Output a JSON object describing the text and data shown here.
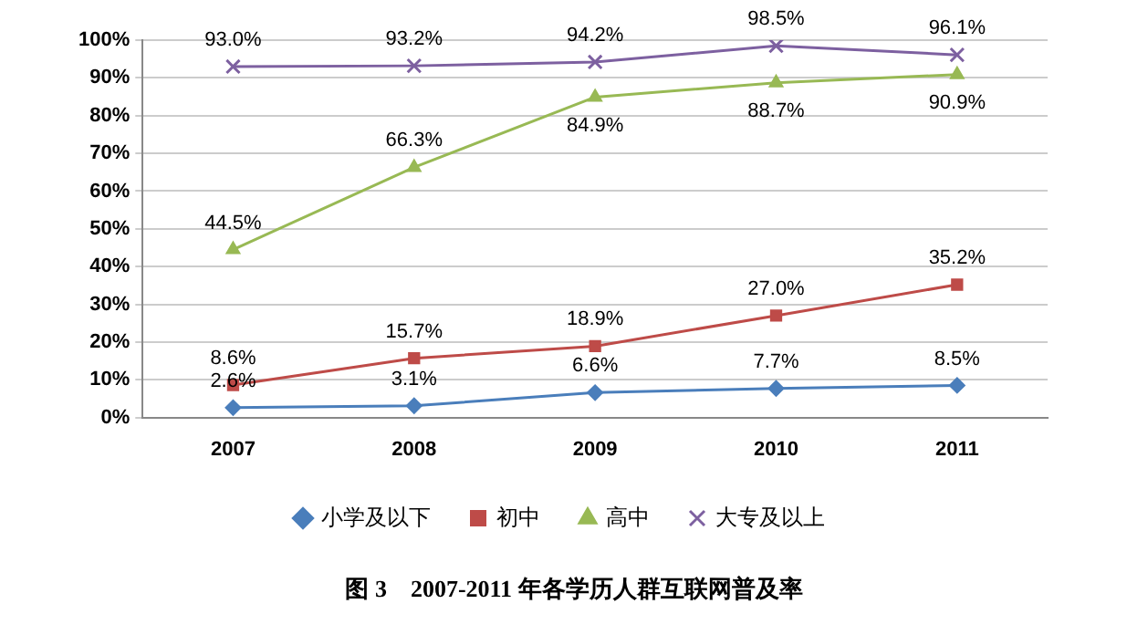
{
  "chart_data": {
    "type": "line",
    "title": "图 3　2007-2011 年各学历人群互联网普及率",
    "categories": [
      "2007",
      "2008",
      "2009",
      "2010",
      "2011"
    ],
    "series": [
      {
        "name": "小学及以下",
        "color": "#4a7ebb",
        "marker": "diamond",
        "values": [
          2.6,
          3.1,
          6.6,
          7.7,
          8.5
        ],
        "value_labels": [
          "2.6%",
          "3.1%",
          "6.6%",
          "7.7%",
          "8.5%"
        ]
      },
      {
        "name": "初中",
        "color": "#be4b48",
        "marker": "square",
        "values": [
          8.6,
          15.7,
          18.9,
          27.0,
          35.2
        ],
        "value_labels": [
          "8.6%",
          "15.7%",
          "18.9%",
          "27.0%",
          "35.2%"
        ]
      },
      {
        "name": "高中",
        "color": "#98b954",
        "marker": "triangle",
        "values": [
          44.5,
          66.3,
          84.9,
          88.7,
          90.9
        ],
        "value_labels": [
          "44.5%",
          "66.3%",
          "84.9%",
          "88.7%",
          "90.9%"
        ]
      },
      {
        "name": "大专及以上",
        "color": "#7d60a0",
        "marker": "cross",
        "values": [
          93.0,
          93.2,
          94.2,
          98.5,
          96.1
        ],
        "value_labels": [
          "93.0%",
          "93.2%",
          "94.2%",
          "98.5%",
          "96.1%"
        ]
      }
    ],
    "ylim": [
      0,
      100
    ],
    "yticks": [
      {
        "value": 0,
        "label": "0%"
      },
      {
        "value": 10,
        "label": "10%"
      },
      {
        "value": 20,
        "label": "20%"
      },
      {
        "value": 30,
        "label": "30%"
      },
      {
        "value": 40,
        "label": "40%"
      },
      {
        "value": 50,
        "label": "50%"
      },
      {
        "value": 60,
        "label": "60%"
      },
      {
        "value": 70,
        "label": "70%"
      },
      {
        "value": 80,
        "label": "80%"
      },
      {
        "value": 90,
        "label": "90%"
      },
      {
        "value": 100,
        "label": "100%"
      }
    ],
    "grid": "y",
    "legend": "bottom"
  }
}
